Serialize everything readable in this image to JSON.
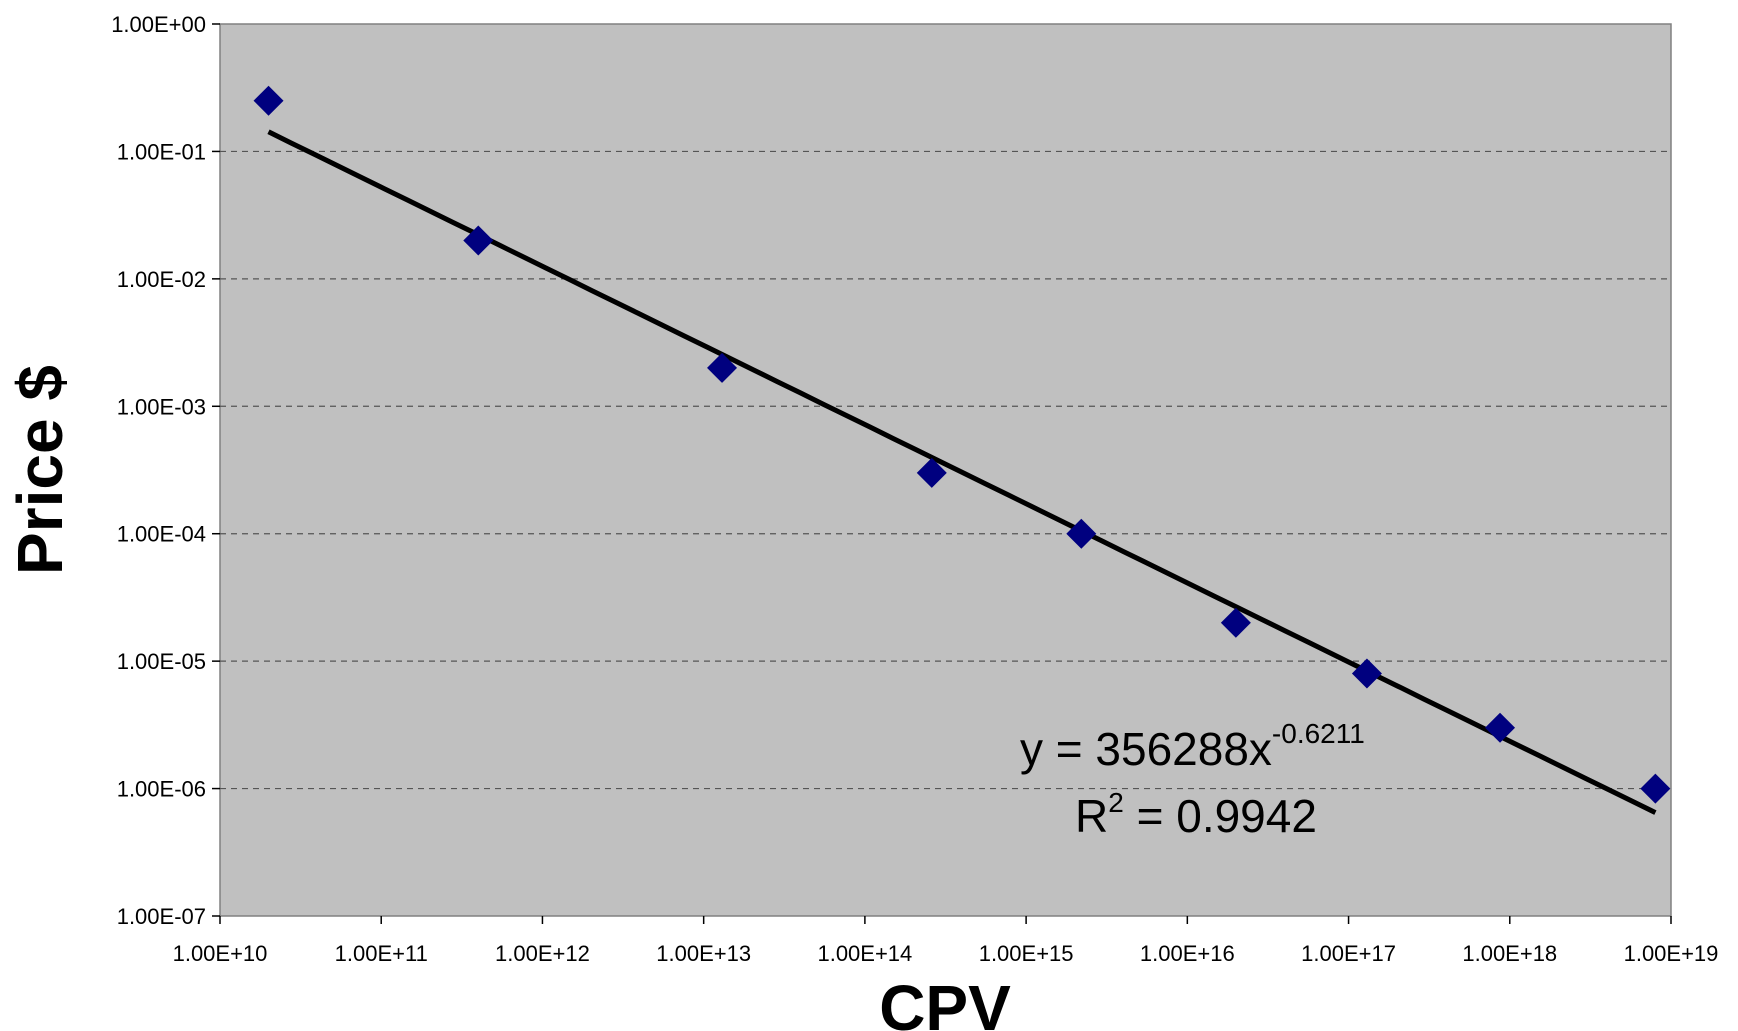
{
  "chart_data": {
    "type": "scatter",
    "xscale": "log",
    "yscale": "log",
    "xlim": [
      10000000000.0,
      1e+19
    ],
    "ylim": [
      1e-07,
      1
    ],
    "xlabel": "CPV",
    "ylabel": "Price $",
    "grid": {
      "horizontal": true,
      "style": "dashed"
    },
    "x_tick_labels": [
      "1.00E+10",
      "1.00E+11",
      "1.00E+12",
      "1.00E+13",
      "1.00E+14",
      "1.00E+15",
      "1.00E+16",
      "1.00E+17",
      "1.00E+18",
      "1.00E+19"
    ],
    "y_tick_labels": [
      "1.00E-07",
      "1.00E-06",
      "1.00E-05",
      "1.00E-04",
      "1.00E-03",
      "1.00E-02",
      "1.00E-01",
      "1.00E+00"
    ],
    "series": [
      {
        "marker": "diamond",
        "color": "#00007f",
        "points": [
          {
            "x": 20000000000.0,
            "y": 0.25
          },
          {
            "x": 400000000000.0,
            "y": 0.02
          },
          {
            "x": 13000000000000.0,
            "y": 0.002
          },
          {
            "x": 260000000000000.0,
            "y": 0.0003
          },
          {
            "x": 2200000000000000.0,
            "y": 0.0001
          },
          {
            "x": 2e+16,
            "y": 2e-05
          },
          {
            "x": 1.3e+17,
            "y": 8e-06
          },
          {
            "x": 8.7e+17,
            "y": 3e-06
          },
          {
            "x": 8e+18,
            "y": 1e-06
          }
        ]
      }
    ],
    "trendline": {
      "type": "power",
      "coefficient": 356288,
      "exponent": -0.6211,
      "x_from": 20000000000.0,
      "x_to": 8e+18,
      "color": "#000000"
    },
    "annotation": {
      "equation_base": "y = 356288x",
      "equation_exponent": "-0.6211",
      "r2_prefix": "R",
      "r2_superscript": "2",
      "r2_value": " = 0.9942"
    },
    "colors": {
      "plot_background": "#c0c0c0",
      "marker": "#00007f",
      "gridline": "#555555"
    }
  }
}
